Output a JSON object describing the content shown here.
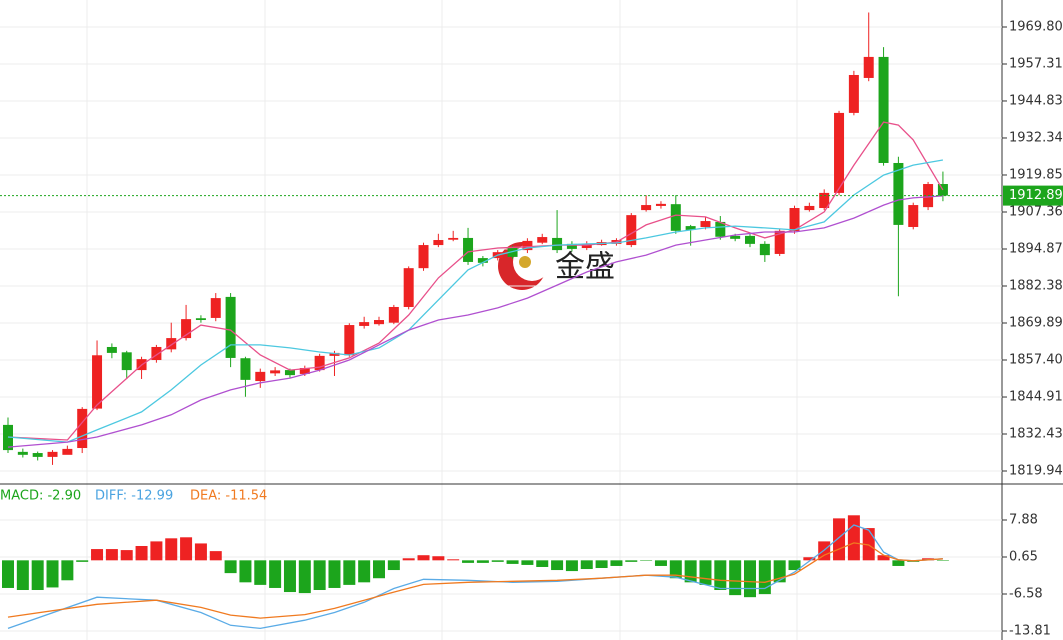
{
  "chart_data": [
    {
      "type": "candlestick",
      "watermark": "金盛",
      "up_color": "#ee2222",
      "down_color": "#1ca51c",
      "open": [
        1835.5,
        1826.4,
        1826,
        1824.7,
        1825.4,
        1827.7,
        1841,
        1861.8,
        1860,
        1854,
        1857.4,
        1861,
        1864.8,
        1871.5,
        1871.6,
        1878.7,
        1858,
        1850.3,
        1852.9,
        1854,
        1852.7,
        1854,
        1858.8,
        1859,
        1868.9,
        1869.5,
        1870,
        1875.3,
        1888.4,
        1896.2,
        1898,
        1898.6,
        1891.8,
        1891.8,
        1895.2,
        1894.5,
        1897,
        1898.6,
        1896.6,
        1895.2,
        1896.2,
        1896.6,
        1896.2,
        1908,
        1909.4,
        1910,
        1902.6,
        1902.3,
        1904,
        1899.3,
        1899.3,
        1896.6,
        1893.2,
        1900.9,
        1908,
        1908.7,
        1913.8,
        1940.8,
        1952.6,
        1959.7,
        1923.9,
        1902.3,
        1909,
        1916.8
      ],
      "high": [
        1838,
        1827.5,
        1826.5,
        1827,
        1828.5,
        1841.5,
        1864,
        1863,
        1860.5,
        1858.5,
        1862.5,
        1870,
        1876,
        1872.5,
        1880,
        1880,
        1858.5,
        1854.5,
        1855,
        1854.5,
        1855.5,
        1859.5,
        1860.5,
        1869.8,
        1872,
        1872,
        1876,
        1889,
        1897,
        1900,
        1901,
        1902,
        1892.5,
        1894.5,
        1896,
        1898.5,
        1900,
        1908,
        1897.5,
        1897.5,
        1898,
        1898.5,
        1907,
        1913,
        1911,
        1913,
        1903,
        1905.5,
        1906,
        1900,
        1900,
        1897.5,
        1901.5,
        1909.5,
        1910.5,
        1915,
        1941.5,
        1955,
        1974.7,
        1963,
        1926,
        1910.5,
        1917.5,
        1921
      ],
      "low": [
        1826,
        1824.5,
        1823.5,
        1822,
        1826.5,
        1826,
        1840.5,
        1858,
        1851,
        1851,
        1856.5,
        1860,
        1864,
        1870,
        1870.5,
        1855,
        1845,
        1848,
        1852,
        1851.5,
        1852,
        1853.5,
        1852,
        1858.5,
        1868,
        1869,
        1869.5,
        1874.5,
        1887.5,
        1895.5,
        1897.5,
        1889.5,
        1889,
        1891,
        1891.5,
        1893.5,
        1896.5,
        1893.5,
        1894,
        1894.5,
        1896,
        1896,
        1895.5,
        1907.5,
        1908.5,
        1900,
        1896,
        1901.5,
        1898,
        1897.5,
        1895.5,
        1890.5,
        1892.5,
        1900,
        1907.5,
        1908,
        1913,
        1940,
        1951.5,
        1923,
        1878.9,
        1901.5,
        1908,
        1911
      ],
      "close": [
        1827,
        1825.4,
        1824.7,
        1826.4,
        1827.4,
        1840.9,
        1859,
        1859.8,
        1854,
        1857.7,
        1861.8,
        1864.8,
        1871.2,
        1870.9,
        1878.3,
        1858.1,
        1850.7,
        1853.4,
        1853.9,
        1852.3,
        1854.7,
        1858.8,
        1859.8,
        1869.2,
        1870.2,
        1870.9,
        1875.3,
        1888.4,
        1896.2,
        1897.9,
        1898.6,
        1890.5,
        1890.2,
        1893.8,
        1892.2,
        1897.6,
        1898.9,
        1894.5,
        1894.9,
        1896.6,
        1897.2,
        1897.9,
        1906.3,
        1909.7,
        1910.1,
        1901,
        1901.3,
        1904.3,
        1899,
        1898.3,
        1896.6,
        1892.8,
        1901,
        1908.7,
        1909.4,
        1913.8,
        1940.8,
        1953.6,
        1959.7,
        1923.9,
        1903,
        1909.7,
        1916.8,
        1912.9
      ],
      "series": [
        {
          "color": "#e8508a",
          "x": [
            0,
            4,
            6,
            9,
            11,
            13,
            15,
            17,
            19,
            21,
            23,
            25,
            27,
            29,
            31,
            33,
            35,
            37,
            39,
            41,
            43,
            45,
            47,
            49,
            51,
            53,
            55,
            57,
            59,
            60,
            61,
            63
          ],
          "values": [
            1831.4,
            1830.4,
            1842.2,
            1855.7,
            1862.5,
            1869.2,
            1867.5,
            1859.1,
            1854.0,
            1855.0,
            1858.1,
            1863.1,
            1872.6,
            1885.1,
            1893.9,
            1895.2,
            1895.6,
            1896.2,
            1896.2,
            1897.2,
            1903,
            1906.3,
            1905.7,
            1902,
            1898.6,
            1901.3,
            1907.4,
            1923.2,
            1937.7,
            1936.7,
            1931.7,
            1914.8
          ]
        },
        {
          "color": "#4cc8e0",
          "x": [
            0,
            4,
            6,
            9,
            11,
            13,
            15,
            17,
            19,
            21,
            23,
            25,
            27,
            29,
            31,
            33,
            35,
            37,
            39,
            41,
            43,
            45,
            47,
            49,
            51,
            53,
            55,
            57,
            59,
            60,
            61,
            63
          ],
          "values": [
            1831.4,
            1829.7,
            1833.8,
            1839.9,
            1847.3,
            1855.7,
            1862.5,
            1862.5,
            1861.5,
            1860.1,
            1859.1,
            1861.5,
            1867.5,
            1877.7,
            1887.8,
            1892.8,
            1895.2,
            1896.2,
            1896.6,
            1896.9,
            1898.6,
            1900.6,
            1902,
            1902.6,
            1902,
            1901.3,
            1904,
            1913.1,
            1919.8,
            1921.5,
            1923.2,
            1924.9
          ]
        },
        {
          "color": "#b050d0",
          "x": [
            0,
            4,
            6,
            9,
            11,
            13,
            15,
            17,
            19,
            21,
            23,
            25,
            27,
            29,
            31,
            33,
            35,
            37,
            39,
            41,
            43,
            45,
            47,
            49,
            51,
            53,
            55,
            57,
            59,
            60,
            61,
            63
          ],
          "values": [
            1828,
            1829.7,
            1831.4,
            1835.5,
            1838.9,
            1843.9,
            1847.3,
            1849.7,
            1851.3,
            1854,
            1857.4,
            1862.5,
            1867.5,
            1870.9,
            1872.6,
            1875,
            1878.3,
            1882.7,
            1887.1,
            1890.5,
            1892.8,
            1896.2,
            1897.9,
            1899.6,
            1900.6,
            1900.6,
            1902,
            1905.3,
            1909.7,
            1911.4,
            1912.1,
            1912.8
          ]
        }
      ],
      "last_price": 1912.89,
      "last_price_color": "#1ca51c",
      "ylim": [
        1815.89,
        1978.91
      ],
      "yticks": [
        1819.94,
        1832.43,
        1844.91,
        {
          "value": 1857.4,
          "label": "1857.40"
        },
        1869.89,
        1882.38,
        1894.87,
        1907.36,
        1919.85,
        1932.34,
        1944.83,
        1957.31,
        {
          "value": 1969.8,
          "label": "1969.80"
        }
      ],
      "grid": true
    },
    {
      "type": "macd",
      "legend": [
        {
          "text": "MACD: -2.90",
          "color": "#1ca51c"
        },
        {
          "text": "DIFF: -12.99",
          "color": "#4aa3e0"
        },
        {
          "text": "DEA: -11.54",
          "color": "#f07a20"
        }
      ],
      "up_color": "#ee2222",
      "down_color": "#1ca51c",
      "values": [
        -5.4,
        -5.8,
        -5.8,
        -5.3,
        -3.9,
        -0.3,
        2.2,
        2.2,
        2.0,
        2.8,
        3.7,
        4.3,
        4.5,
        3.3,
        1.8,
        -2.5,
        -4.3,
        -4.8,
        -5.4,
        -6.2,
        -6.4,
        -5.8,
        -5.4,
        -4.8,
        -4.3,
        -3.5,
        -1.9,
        0.4,
        1.0,
        0.8,
        0.2,
        -0.5,
        -0.5,
        -0.3,
        -0.7,
        -0.9,
        -1.3,
        -1.9,
        -2.1,
        -1.7,
        -1.5,
        -1.1,
        -0.3,
        -0.1,
        -1.1,
        -3.5,
        -4.3,
        -4.8,
        -5.8,
        -6.8,
        -7.2,
        -6.6,
        -4.3,
        -1.9,
        0.6,
        3.7,
        8.2,
        8.8,
        6.3,
        1.0,
        -1.1,
        -0.3,
        0.4,
        -0.1
      ],
      "series": [
        {
          "color": "#5aabe6",
          "x": [
            0,
            6,
            10,
            13,
            15,
            17,
            20,
            22,
            24,
            26,
            28,
            31,
            34,
            37,
            40,
            43,
            45,
            48,
            51,
            53,
            55,
            57,
            58,
            59,
            60,
            61,
            63
          ],
          "values": [
            -13.3,
            -7.2,
            -7.8,
            -10.2,
            -12.7,
            -13.3,
            -11.7,
            -10.2,
            -8.2,
            -5.5,
            -3.7,
            -3.9,
            -4.3,
            -4.1,
            -3.5,
            -2.9,
            -3.3,
            -5.5,
            -5.5,
            -2.3,
            2.0,
            6.9,
            5.9,
            1.6,
            0.1,
            -0.1,
            0.3
          ]
        },
        {
          "color": "#f07a20",
          "x": [
            0,
            6,
            10,
            13,
            15,
            17,
            20,
            22,
            24,
            26,
            28,
            31,
            34,
            37,
            40,
            43,
            45,
            48,
            51,
            53,
            55,
            57,
            58,
            59,
            60,
            61,
            63
          ],
          "values": [
            -11.1,
            -8.6,
            -7.8,
            -9.2,
            -10.7,
            -11.3,
            -10.6,
            -9.4,
            -7.8,
            -6.2,
            -4.7,
            -4.3,
            -4.1,
            -3.9,
            -3.5,
            -2.9,
            -2.9,
            -3.9,
            -4.3,
            -2.7,
            1.0,
            3.4,
            3.0,
            1.0,
            0.1,
            -0.1,
            0.3
          ]
        }
      ],
      "ylim": [
        -15.57,
        14.72
      ],
      "yticks": [
        -13.81,
        -6.58,
        0.65,
        7.88
      ],
      "grid": true
    }
  ]
}
